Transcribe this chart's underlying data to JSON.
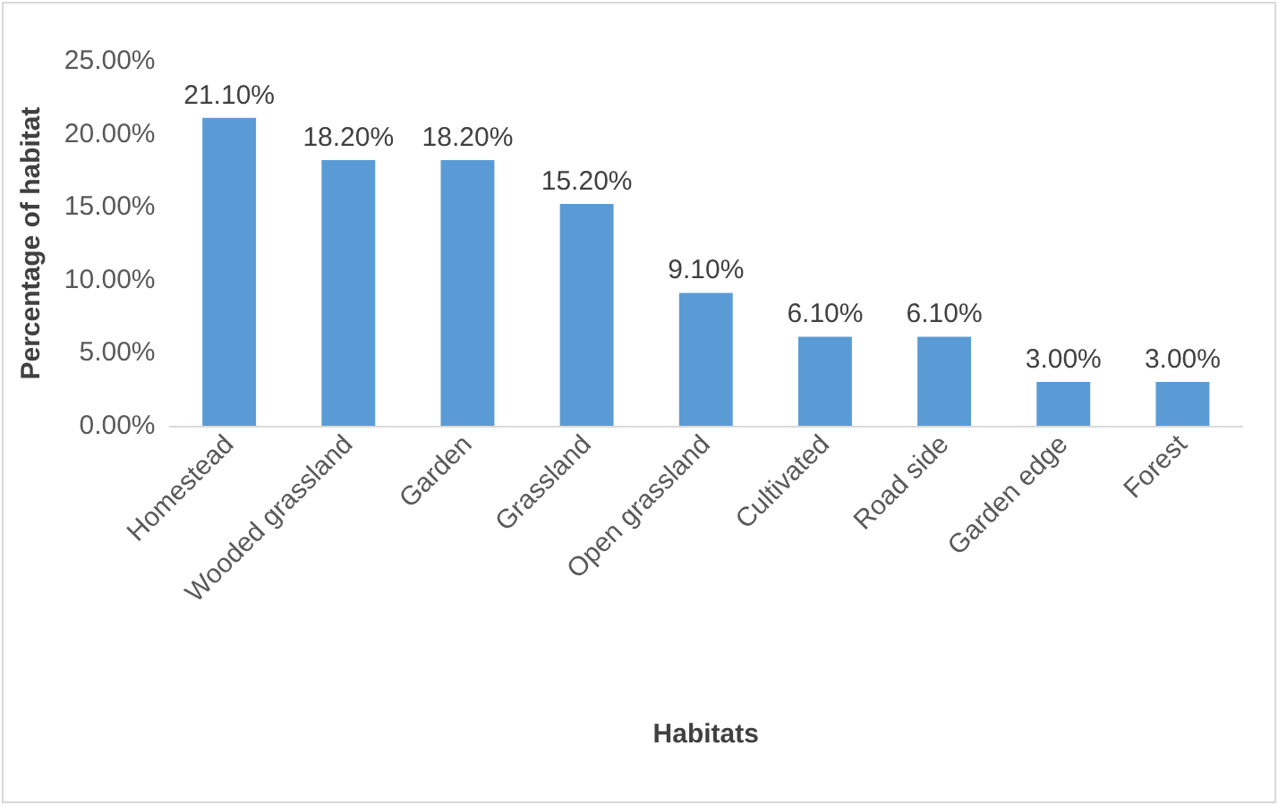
{
  "chart_data": {
    "type": "bar",
    "xlabel": "Habitats",
    "ylabel": "Percentage of habitat",
    "categories": [
      "Homestead",
      "Wooded grassland",
      "Garden",
      "Grassland",
      "Open grassland",
      "Cultivated",
      "Road side",
      "Garden edge",
      "Forest"
    ],
    "values": [
      21.1,
      18.2,
      18.2,
      15.2,
      9.1,
      6.1,
      6.1,
      3.0,
      3.0
    ],
    "value_labels": [
      "21.10%",
      "18.20%",
      "18.20%",
      "15.20%",
      "9.10%",
      "6.10%",
      "6.10%",
      "3.00%",
      "3.00%"
    ],
    "color": "#5b9bd5",
    "ylim": [
      0,
      25
    ],
    "yticks": [
      {
        "value": 0,
        "label": "0.00%"
      },
      {
        "value": 5,
        "label": "5.00%"
      },
      {
        "value": 10,
        "label": "10.00%"
      },
      {
        "value": 15,
        "label": "15.00%"
      },
      {
        "value": 20,
        "label": "20.00%"
      },
      {
        "value": 25,
        "label": "25.00%"
      }
    ]
  }
}
